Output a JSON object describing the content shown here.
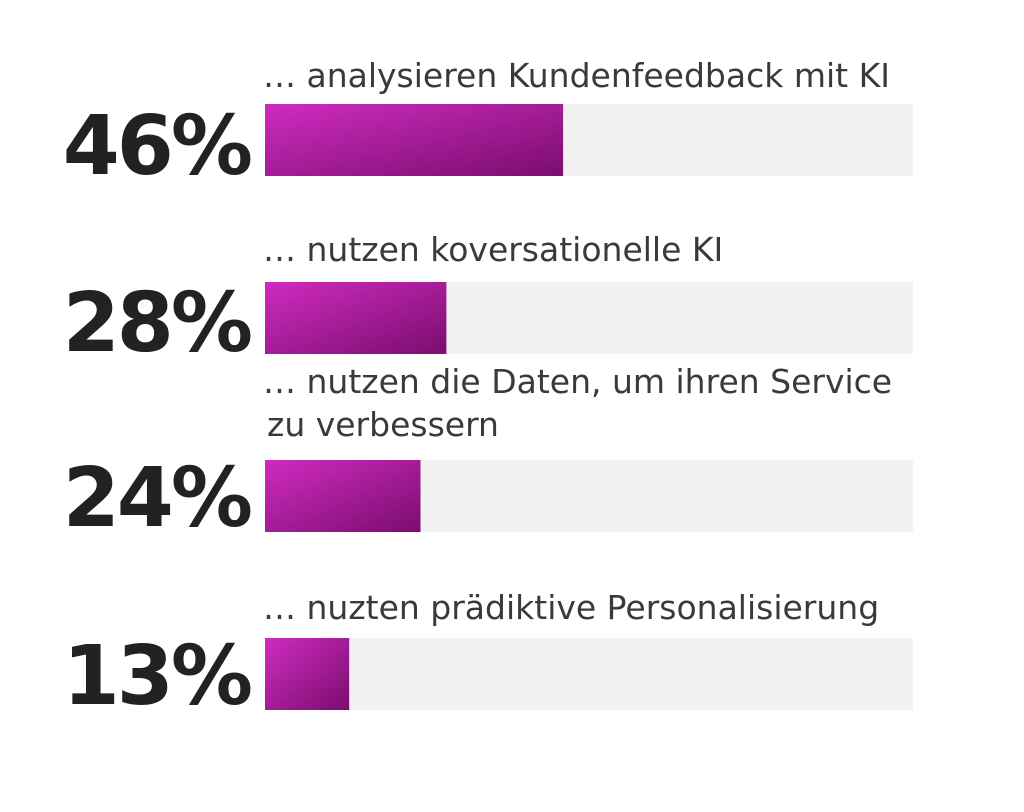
{
  "chart_data": {
    "type": "bar",
    "orientation": "horizontal",
    "xlim": [
      0,
      100
    ],
    "grid": false,
    "legend": "none",
    "colors": {
      "track": "#f1f1f1",
      "bar_start": "#cf2bc0",
      "bar_end": "#7a0e6e",
      "value_text": "#222222",
      "label_text": "#3a3a3a"
    },
    "categories": [
      [
        "… analysieren Kundenfeedback mit KI"
      ],
      [
        "… nutzen koversationelle KI"
      ],
      [
        "… nutzen die Daten, um ihren Service",
        "zu verbessern"
      ],
      [
        "… nuzten prädiktive Personalisierung"
      ]
    ],
    "values": [
      46,
      28,
      24,
      13
    ],
    "value_labels": [
      "46%",
      "28%",
      "24%",
      "13%"
    ]
  }
}
